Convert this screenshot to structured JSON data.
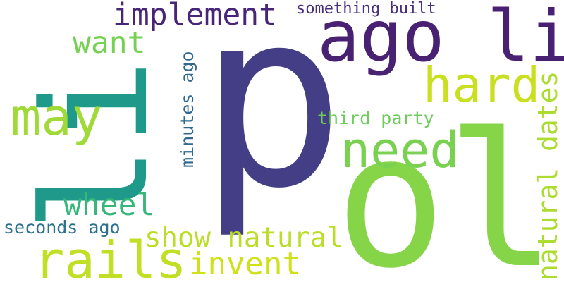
{
  "word_cloud": {
    "words": [
      {
        "text": "p",
        "color": "#433e85",
        "orientation": "horizontal"
      },
      {
        "text": "ol",
        "color": "#86d549",
        "orientation": "horizontal"
      },
      {
        "text": "li",
        "color": "#1f9a8a",
        "orientation": "vertical"
      },
      {
        "text": "ago li",
        "color": "#482173",
        "orientation": "horizontal"
      },
      {
        "text": "implement",
        "color": "#482677",
        "orientation": "horizontal"
      },
      {
        "text": "something built",
        "color": "#472d7b",
        "orientation": "horizontal"
      },
      {
        "text": "hard",
        "color": "#c8e020",
        "orientation": "horizontal"
      },
      {
        "text": "want",
        "color": "#75d054",
        "orientation": "horizontal"
      },
      {
        "text": "may",
        "color": "#a0da39",
        "orientation": "horizontal"
      },
      {
        "text": "need",
        "color": "#7ad151",
        "orientation": "horizontal"
      },
      {
        "text": "minutes ago",
        "color": "#31688e",
        "orientation": "vertical"
      },
      {
        "text": "third party",
        "color": "#6ccd5a",
        "orientation": "horizontal"
      },
      {
        "text": "natural dates",
        "color": "#addc30",
        "orientation": "vertical"
      },
      {
        "text": "wheel",
        "color": "#35b779",
        "orientation": "horizontal"
      },
      {
        "text": "seconds ago",
        "color": "#2c728e",
        "orientation": "horizontal"
      },
      {
        "text": "show natural",
        "color": "#bade28",
        "orientation": "horizontal"
      },
      {
        "text": "rails",
        "color": "#c0df25",
        "orientation": "horizontal"
      },
      {
        "text": "invent",
        "color": "#d0e11c",
        "orientation": "horizontal"
      }
    ]
  }
}
